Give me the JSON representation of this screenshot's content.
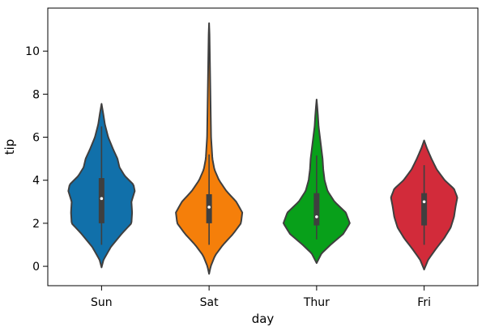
{
  "chart_data": {
    "type": "violin",
    "title": "",
    "xlabel": "day",
    "ylabel": "tip",
    "categories": [
      "Sun",
      "Sat",
      "Thur",
      "Fri"
    ],
    "ylim": [
      -0.9,
      12.0
    ],
    "yticks": [
      0,
      2,
      4,
      6,
      8,
      10
    ],
    "grid": false,
    "legend": "none",
    "series": [
      {
        "category": "Sun",
        "color": "#1170AA",
        "min": 1.0,
        "q1": 2.0,
        "median": 3.15,
        "q3": 4.1,
        "max": 6.5,
        "kde_min": -0.05,
        "kde_max": 7.55,
        "profile": [
          [
            -0.05,
            0.0
          ],
          [
            0.3,
            0.06
          ],
          [
            0.9,
            0.28
          ],
          [
            1.5,
            0.6
          ],
          [
            2.0,
            0.9
          ],
          [
            2.5,
            0.92
          ],
          [
            3.0,
            0.9
          ],
          [
            3.5,
            1.0
          ],
          [
            3.8,
            0.96
          ],
          [
            4.2,
            0.7
          ],
          [
            4.6,
            0.54
          ],
          [
            5.0,
            0.48
          ],
          [
            5.4,
            0.36
          ],
          [
            6.0,
            0.2
          ],
          [
            6.6,
            0.1
          ],
          [
            7.1,
            0.05
          ],
          [
            7.55,
            0.0
          ]
        ]
      },
      {
        "category": "Sat",
        "color": "#F57F0A",
        "min": 1.0,
        "q1": 2.0,
        "median": 2.75,
        "q3": 3.35,
        "max": 5.2,
        "kde_min": -0.35,
        "kde_max": 11.3,
        "profile": [
          [
            -0.35,
            0.0
          ],
          [
            0.0,
            0.05
          ],
          [
            0.5,
            0.18
          ],
          [
            1.0,
            0.42
          ],
          [
            1.5,
            0.72
          ],
          [
            2.0,
            0.96
          ],
          [
            2.5,
            1.0
          ],
          [
            3.0,
            0.82
          ],
          [
            3.5,
            0.52
          ],
          [
            4.0,
            0.3
          ],
          [
            4.5,
            0.16
          ],
          [
            5.0,
            0.1
          ],
          [
            6.0,
            0.06
          ],
          [
            7.0,
            0.05
          ],
          [
            8.0,
            0.04
          ],
          [
            9.0,
            0.03
          ],
          [
            10.0,
            0.02
          ],
          [
            10.8,
            0.012
          ],
          [
            11.3,
            0.0
          ]
        ]
      },
      {
        "category": "Thur",
        "color": "#08A01A",
        "min": 1.25,
        "q1": 1.9,
        "median": 2.3,
        "q3": 3.4,
        "max": 5.15,
        "kde_min": 0.15,
        "kde_max": 7.75,
        "profile": [
          [
            0.15,
            0.0
          ],
          [
            0.6,
            0.15
          ],
          [
            1.0,
            0.42
          ],
          [
            1.5,
            0.8
          ],
          [
            2.0,
            1.0
          ],
          [
            2.5,
            0.88
          ],
          [
            3.0,
            0.54
          ],
          [
            3.5,
            0.33
          ],
          [
            4.0,
            0.24
          ],
          [
            4.5,
            0.2
          ],
          [
            5.0,
            0.18
          ],
          [
            5.5,
            0.14
          ],
          [
            6.0,
            0.1
          ],
          [
            6.5,
            0.06
          ],
          [
            7.0,
            0.04
          ],
          [
            7.4,
            0.02
          ],
          [
            7.75,
            0.0
          ]
        ]
      },
      {
        "category": "Fri",
        "color": "#D22B3A",
        "min": 1.0,
        "q1": 1.9,
        "median": 3.0,
        "q3": 3.4,
        "max": 4.7,
        "kde_min": -0.15,
        "kde_max": 5.85,
        "profile": [
          [
            -0.15,
            0.0
          ],
          [
            0.3,
            0.12
          ],
          [
            0.8,
            0.35
          ],
          [
            1.3,
            0.6
          ],
          [
            1.8,
            0.8
          ],
          [
            2.3,
            0.9
          ],
          [
            2.8,
            0.95
          ],
          [
            3.2,
            1.0
          ],
          [
            3.6,
            0.9
          ],
          [
            4.0,
            0.62
          ],
          [
            4.5,
            0.38
          ],
          [
            5.0,
            0.22
          ],
          [
            5.5,
            0.08
          ],
          [
            5.85,
            0.0
          ]
        ]
      }
    ]
  }
}
